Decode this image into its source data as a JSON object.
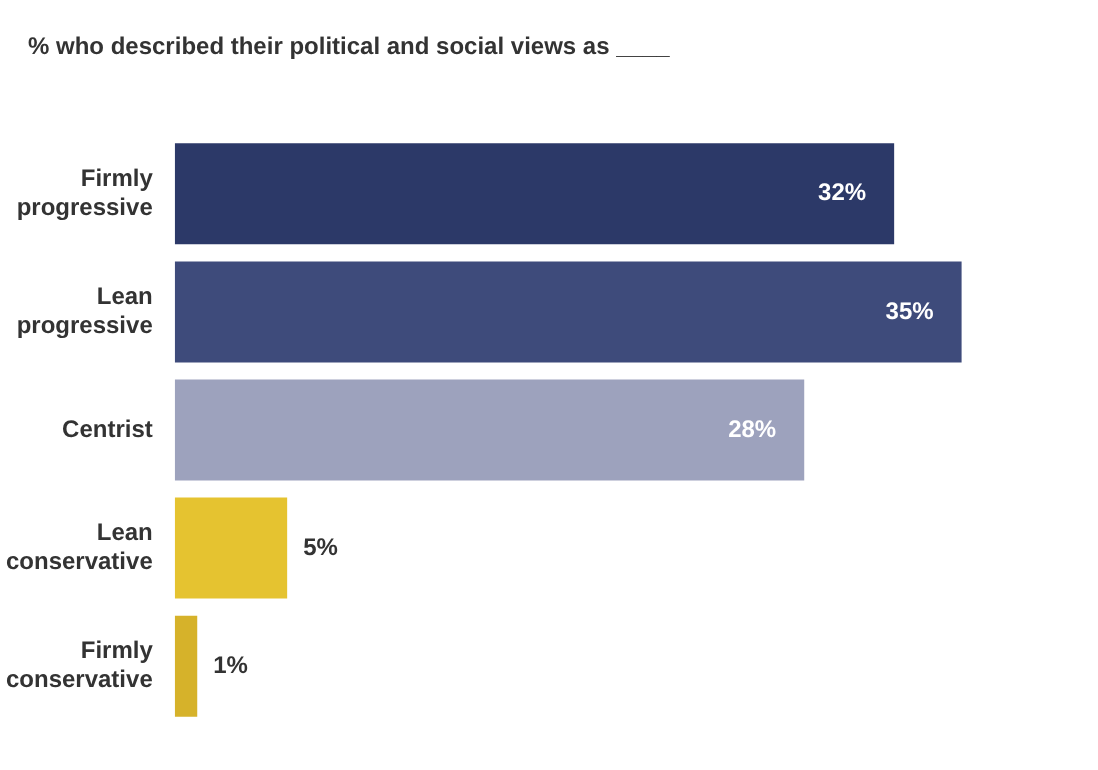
{
  "chart_data": {
    "type": "bar",
    "orientation": "horizontal",
    "title": "% who described their political and social views as ____",
    "categories": [
      "Firmly progressive",
      "Lean progressive",
      "Centrist",
      "Lean conservative",
      "Firmly conservative"
    ],
    "values": [
      32,
      35,
      28,
      5,
      1
    ],
    "colors": [
      "#2c3968",
      "#3e4b7b",
      "#9da2bd",
      "#e5c330",
      "#d6b22a"
    ],
    "value_labels": [
      "32%",
      "35%",
      "28%",
      "5%",
      "1%"
    ]
  }
}
